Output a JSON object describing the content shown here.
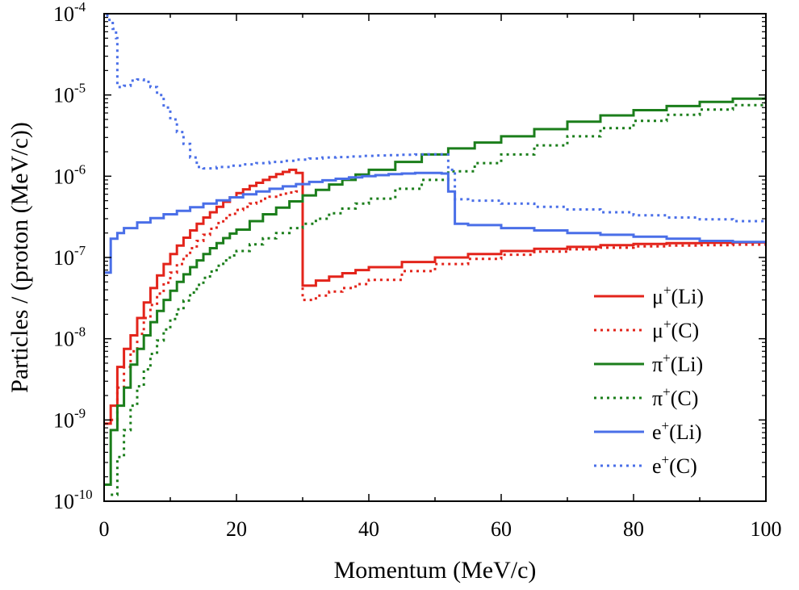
{
  "chart_data": {
    "type": "line",
    "xlabel": "Momentum (MeV/c)",
    "ylabel": "Particles / (proton (MeV/c))",
    "xlim": [
      0,
      100
    ],
    "ylim": [
      1e-10,
      0.0001
    ],
    "yscale": "log",
    "x_ticks": [
      {
        "value": 0,
        "label": "0"
      },
      {
        "value": 20,
        "label": "20"
      },
      {
        "value": 40,
        "label": "40"
      },
      {
        "value": 60,
        "label": "60"
      },
      {
        "value": 80,
        "label": "80"
      },
      {
        "value": 100,
        "label": "100"
      }
    ],
    "y_ticks": [
      {
        "value": 1e-10,
        "base": "10",
        "exp": "-10"
      },
      {
        "value": 1e-09,
        "base": "10",
        "exp": "-9"
      },
      {
        "value": 1e-08,
        "base": "10",
        "exp": "-8"
      },
      {
        "value": 1e-07,
        "base": "10",
        "exp": "-7"
      },
      {
        "value": 1e-06,
        "base": "10",
        "exp": "-6"
      },
      {
        "value": 1e-05,
        "base": "10",
        "exp": "-5"
      },
      {
        "value": 0.0001,
        "base": "10",
        "exp": "-4"
      }
    ],
    "legend_position": "bottom-right",
    "series": [
      {
        "name": "mu-li",
        "label": {
          "base": "μ",
          "sup": "+",
          "rest": "(Li)"
        },
        "color": "#e3241b",
        "style": "solid",
        "x": [
          0,
          1,
          2,
          3,
          4,
          5,
          6,
          7,
          8,
          9,
          10,
          11,
          12,
          13,
          14,
          15,
          16,
          17,
          18,
          19,
          20,
          21,
          22,
          23,
          24,
          25,
          26,
          27,
          28,
          29,
          30,
          32,
          34,
          36,
          38,
          40,
          45,
          50,
          55,
          60,
          65,
          70,
          75,
          80,
          85,
          90,
          95,
          100
        ],
        "y": [
          9e-10,
          1.5e-09,
          4.5e-09,
          7.5e-09,
          1.1e-08,
          1.8e-08,
          2.8e-08,
          4.2e-08,
          6e-08,
          8.3e-08,
          1.1e-07,
          1.4e-07,
          1.75e-07,
          2.15e-07,
          2.6e-07,
          3.1e-07,
          3.6e-07,
          4.2e-07,
          4.85e-07,
          5.5e-07,
          6.2e-07,
          6.9e-07,
          7.6e-07,
          8.3e-07,
          9e-07,
          9.8e-07,
          1.06e-06,
          1.13e-06,
          1.2e-06,
          1.1e-06,
          4.5e-08,
          5.2e-08,
          5.8e-08,
          6.4e-08,
          7e-08,
          7.6e-08,
          8.8e-08,
          1e-07,
          1.1e-07,
          1.2e-07,
          1.28e-07,
          1.35e-07,
          1.42e-07,
          1.47e-07,
          1.5e-07,
          1.52e-07,
          1.53e-07,
          1.53e-07
        ]
      },
      {
        "name": "mu-c",
        "label": {
          "base": "μ",
          "sup": "+",
          "rest": "(C)"
        },
        "color": "#e3241b",
        "style": "dotted",
        "x": [
          1,
          2,
          3,
          4,
          5,
          6,
          7,
          8,
          9,
          10,
          11,
          12,
          13,
          14,
          15,
          16,
          17,
          18,
          19,
          20,
          21,
          22,
          23,
          24,
          25,
          26,
          27,
          28,
          29,
          30,
          32,
          34,
          36,
          38,
          40,
          45,
          50,
          55,
          60,
          65,
          70,
          75,
          80,
          85,
          90,
          95,
          100
        ],
        "y": [
          1e-09,
          2.5e-09,
          4.5e-09,
          7e-09,
          1.15e-08,
          1.8e-08,
          2.6e-08,
          3.6e-08,
          4.9e-08,
          6.5e-08,
          8.3e-08,
          1.05e-07,
          1.3e-07,
          1.6e-07,
          1.9e-07,
          2.25e-07,
          2.65e-07,
          3.05e-07,
          3.45e-07,
          3.85e-07,
          4.2e-07,
          4.6e-07,
          4.95e-07,
          5.3e-07,
          5.6e-07,
          5.9e-07,
          6.1e-07,
          6.3e-07,
          6.5e-07,
          3e-08,
          3.4e-08,
          3.8e-08,
          4.2e-08,
          4.7e-08,
          5.3e-08,
          6.8e-08,
          8.3e-08,
          9.6e-08,
          1.08e-07,
          1.18e-07,
          1.26e-07,
          1.32e-07,
          1.37e-07,
          1.4e-07,
          1.42e-07,
          1.44e-07,
          1.45e-07
        ]
      },
      {
        "name": "pi-li",
        "label": {
          "base": "π",
          "sup": "+",
          "rest": "(Li)"
        },
        "color": "#1b7e1b",
        "style": "solid",
        "x": [
          0,
          1,
          2,
          3,
          4,
          5,
          6,
          7,
          8,
          9,
          10,
          11,
          12,
          13,
          14,
          15,
          16,
          17,
          18,
          19,
          20,
          22,
          24,
          26,
          28,
          30,
          32,
          34,
          36,
          38,
          40,
          44,
          48,
          52,
          56,
          60,
          65,
          70,
          75,
          80,
          85,
          90,
          95,
          100
        ],
        "y": [
          1.6e-10,
          7.5e-10,
          1.5e-09,
          2.5e-09,
          4.8e-09,
          7.5e-09,
          1.1e-08,
          1.6e-08,
          2.2e-08,
          3e-08,
          3.9e-08,
          5e-08,
          6.2e-08,
          7.6e-08,
          9.2e-08,
          1.1e-07,
          1.3e-07,
          1.5e-07,
          1.73e-07,
          1.97e-07,
          2.2e-07,
          2.8e-07,
          3.4e-07,
          4.1e-07,
          4.9e-07,
          5.8e-07,
          6.8e-07,
          7.9e-07,
          9e-07,
          1.05e-06,
          1.2e-06,
          1.5e-06,
          1.85e-06,
          2.2e-06,
          2.6e-06,
          3.1e-06,
          3.8e-06,
          4.7e-06,
          5.6e-06,
          6.5e-06,
          7.3e-06,
          8.2e-06,
          9e-06,
          9.7e-06
        ]
      },
      {
        "name": "pi-c",
        "label": {
          "base": "π",
          "sup": "+",
          "rest": "(C)"
        },
        "color": "#1b7e1b",
        "style": "dotted",
        "x": [
          1,
          2,
          3,
          4,
          5,
          6,
          7,
          8,
          9,
          10,
          11,
          12,
          13,
          14,
          15,
          16,
          17,
          18,
          19,
          20,
          22,
          24,
          26,
          28,
          30,
          32,
          34,
          36,
          38,
          40,
          44,
          48,
          52,
          56,
          60,
          65,
          70,
          75,
          80,
          85,
          90,
          95,
          100
        ],
        "y": [
          1.2e-10,
          3.5e-10,
          7.5e-10,
          1.5e-09,
          2.6e-09,
          4.2e-09,
          6.5e-09,
          9.5e-09,
          1.3e-08,
          1.75e-08,
          2.3e-08,
          2.95e-08,
          3.7e-08,
          4.6e-08,
          5.6e-08,
          6.7e-08,
          7.9e-08,
          9.2e-08,
          1.06e-07,
          1.2e-07,
          1.45e-07,
          1.72e-07,
          2e-07,
          2.3e-07,
          2.6e-07,
          3e-07,
          3.5e-07,
          4e-07,
          4.6e-07,
          5.3e-07,
          7e-07,
          9e-07,
          1.15e-06,
          1.45e-06,
          1.85e-06,
          2.4e-06,
          3.1e-06,
          3.9e-06,
          4.8e-06,
          5.7e-06,
          6.6e-06,
          7.5e-06,
          8.3e-06
        ]
      },
      {
        "name": "e-li",
        "label": {
          "base": "e",
          "sup": "+",
          "rest": "(Li)"
        },
        "color": "#4a6fe8",
        "style": "solid",
        "x": [
          0,
          1,
          2,
          3,
          5,
          7,
          9,
          11,
          13,
          15,
          17,
          19,
          21,
          23,
          25,
          27,
          29,
          31,
          33,
          35,
          37,
          39,
          41,
          43,
          45,
          47,
          49,
          51,
          52,
          53,
          55,
          60,
          65,
          70,
          75,
          80,
          85,
          90,
          95,
          100
        ],
        "y": [
          6.5e-08,
          1.7e-07,
          2e-07,
          2.3e-07,
          2.7e-07,
          3.05e-07,
          3.4e-07,
          3.75e-07,
          4.15e-07,
          4.6e-07,
          5.05e-07,
          5.5e-07,
          6e-07,
          6.5e-07,
          7e-07,
          7.5e-07,
          8e-07,
          8.5e-07,
          8.9e-07,
          9.3e-07,
          9.7e-07,
          1e-06,
          1.03e-06,
          1.06e-06,
          1.08e-06,
          1.1e-06,
          1.1e-06,
          1.08e-06,
          6.5e-07,
          2.6e-07,
          2.5e-07,
          2.3e-07,
          2.15e-07,
          2e-07,
          1.9e-07,
          1.8e-07,
          1.7e-07,
          1.6e-07,
          1.55e-07,
          1.5e-07
        ]
      },
      {
        "name": "e-c",
        "label": {
          "base": "e",
          "sup": "+",
          "rest": "(C)"
        },
        "color": "#4a6fe8",
        "style": "dotted",
        "x": [
          0.3,
          0.8,
          1.3,
          1.8,
          2,
          3,
          4,
          5,
          6,
          7,
          8,
          9,
          10,
          11,
          12,
          13,
          14,
          15,
          17,
          19,
          21,
          23,
          25,
          27,
          29,
          31,
          33,
          35,
          37,
          39,
          41,
          43,
          45,
          47,
          49,
          51,
          52,
          53,
          55,
          60,
          65,
          70,
          75,
          80,
          85,
          90,
          95,
          100
        ],
        "y": [
          9.5e-05,
          8e-05,
          6.5e-05,
          5e-05,
          1.25e-05,
          1.3e-05,
          1.5e-05,
          1.55e-05,
          1.45e-05,
          1.25e-05,
          1e-05,
          7e-06,
          5e-06,
          3.5e-06,
          2.5e-06,
          1.7e-06,
          1.3e-06,
          1.25e-06,
          1.3e-06,
          1.35e-06,
          1.4e-06,
          1.45e-06,
          1.5e-06,
          1.55e-06,
          1.6e-06,
          1.65e-06,
          1.7e-06,
          1.72e-06,
          1.75e-06,
          1.78e-06,
          1.8e-06,
          1.82e-06,
          1.84e-06,
          1.85e-06,
          1.86e-06,
          1.85e-06,
          1.2e-06,
          5.2e-07,
          5e-07,
          4.6e-07,
          4.2e-07,
          3.9e-07,
          3.6e-07,
          3.3e-07,
          3.1e-07,
          2.95e-07,
          2.8e-07,
          2.7e-07
        ]
      }
    ]
  }
}
